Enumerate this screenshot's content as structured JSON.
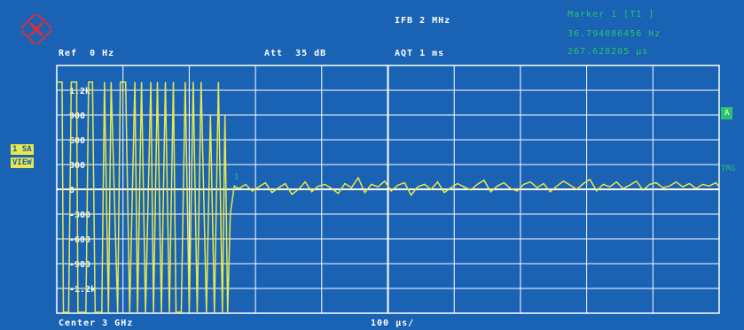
{
  "header": {
    "ifb": "IFB 2 MHz",
    "marker_title": "Marker 1 [T1 ]",
    "marker_freq": "36.794086456 Hz",
    "marker_time": "267.628205 μs",
    "ref": "Ref  0 Hz",
    "att": "Att  35 dB",
    "aqt": "AQT 1 ms"
  },
  "side": {
    "trace_mode": "1 SA",
    "view": "VIEW",
    "a_label": "A",
    "trg": "TRG"
  },
  "footer": {
    "center": "Center 3 GHz",
    "div": "100 μs/"
  },
  "colors": {
    "background": "#1a62b4",
    "grid": "#ffffff",
    "trace": "#e8e84a",
    "marker_text": "#29c46a"
  },
  "chart_data": {
    "type": "line",
    "x_unit": "μs",
    "xlim": [
      0,
      1000
    ],
    "ylim": [
      -1500,
      1500
    ],
    "y_ticks": [
      "1.2k",
      "900",
      "600",
      "300",
      "0",
      "-300",
      "-600",
      "-900",
      "-1.2k"
    ],
    "y_tick_values": [
      1200,
      900,
      600,
      300,
      0,
      -300,
      -600,
      -900,
      -1200
    ],
    "marker": {
      "label": "1",
      "x": 267.6,
      "y": 36.8
    },
    "series": [
      {
        "x": [
          0,
          8,
          10,
          18,
          22,
          30,
          32,
          44,
          48,
          54,
          58,
          68,
          72,
          78,
          82,
          92,
          96,
          104,
          110,
          118,
          122,
          128,
          134,
          142,
          146,
          152,
          158,
          164,
          170,
          176,
          180,
          188,
          194,
          200,
          206,
          212,
          218,
          226,
          232,
          238,
          244,
          250,
          254,
          258,
          262,
          268,
          275,
          285,
          295,
          305,
          315,
          325,
          335,
          345,
          355,
          365,
          375,
          385,
          395,
          405,
          415,
          425,
          435,
          445,
          455,
          465,
          475,
          485,
          495,
          505,
          515,
          525,
          535,
          545,
          555,
          565,
          575,
          585,
          595,
          605,
          615,
          625,
          635,
          645,
          655,
          665,
          675,
          685,
          695,
          705,
          715,
          725,
          735,
          745,
          755,
          765,
          775,
          785,
          795,
          805,
          815,
          825,
          835,
          845,
          855,
          865,
          875,
          885,
          895,
          905,
          915,
          925,
          935,
          945,
          955,
          965,
          975,
          985,
          995,
          1000
        ],
        "y": [
          1300,
          1300,
          -1500,
          -1500,
          1300,
          1300,
          -1500,
          -1500,
          1300,
          1300,
          -1500,
          -1500,
          1300,
          -1500,
          1300,
          -1500,
          1300,
          1300,
          -1500,
          1300,
          -1500,
          1300,
          -1500,
          1300,
          -1500,
          1300,
          -1500,
          1300,
          -1500,
          1300,
          -1500,
          -1500,
          1300,
          -1500,
          1300,
          -1500,
          1300,
          -1500,
          900,
          -1500,
          1300,
          -1500,
          900,
          -1500,
          -300,
          40,
          10,
          60,
          -20,
          30,
          80,
          -40,
          20,
          70,
          -60,
          0,
          90,
          -30,
          40,
          60,
          10,
          -50,
          70,
          20,
          140,
          -40,
          60,
          30,
          100,
          -20,
          50,
          80,
          -70,
          30,
          60,
          0,
          90,
          -40,
          20,
          70,
          30,
          -10,
          60,
          110,
          -30,
          40,
          80,
          10,
          -20,
          60,
          90,
          20,
          70,
          -30,
          40,
          100,
          50,
          0,
          70,
          120,
          -20,
          60,
          30,
          90,
          10,
          50,
          100,
          -10,
          60,
          80,
          20,
          40,
          90,
          30,
          70,
          10,
          60,
          40,
          80,
          30
        ]
      }
    ]
  }
}
